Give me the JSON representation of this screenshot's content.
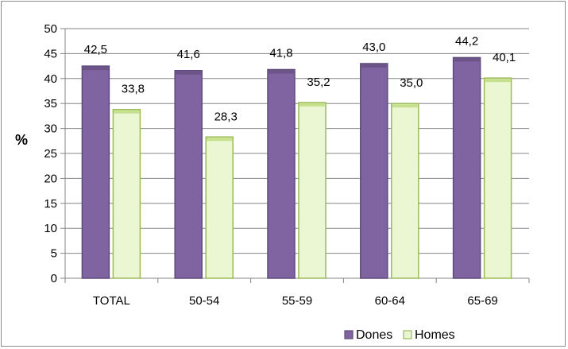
{
  "chart_data": {
    "type": "bar",
    "title": "",
    "xlabel": "",
    "ylabel": "%",
    "ylim": [
      0,
      50
    ],
    "yticks": [
      "0",
      "5",
      "10",
      "15",
      "20",
      "25",
      "30",
      "35",
      "40",
      "45",
      "50"
    ],
    "categories": [
      "TOTAL",
      "50-54",
      "55-59",
      "60-64",
      "65-69"
    ],
    "series": [
      {
        "name": "Dones",
        "values": [
          42.5,
          41.6,
          41.8,
          43.0,
          44.2
        ],
        "labels": [
          "42,5",
          "41,6",
          "41,8",
          "43,0",
          "44,2"
        ],
        "color": "#8064a2",
        "edge": "#5f4b7c",
        "top": "#6b5488"
      },
      {
        "name": "Homes",
        "values": [
          33.8,
          28.3,
          35.2,
          35.0,
          40.1
        ],
        "labels": [
          "33,8",
          "28,3",
          "35,2",
          "35,0",
          "40,1"
        ],
        "color": "#ebf7d2",
        "edge": "#9bbb59",
        "top": "#c6e08e"
      }
    ],
    "grid": true,
    "legend": "bottom-right"
  }
}
